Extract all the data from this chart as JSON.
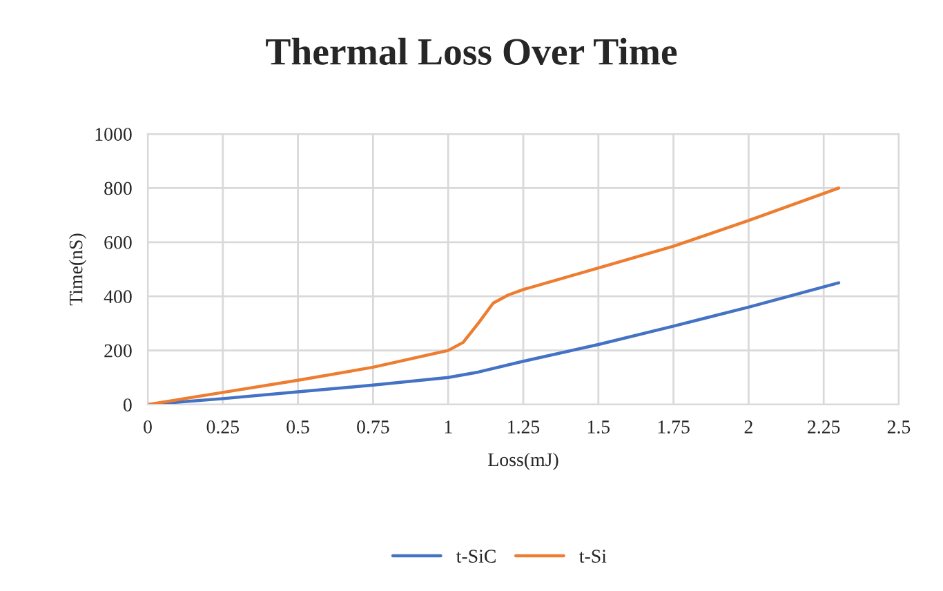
{
  "chart_data": {
    "type": "line",
    "title": "Thermal Loss Over Time",
    "xlabel": "Loss(mJ)",
    "ylabel": "Time(nS)",
    "series": [
      {
        "name": "t-SiC",
        "color": "#4472c4",
        "x": [
          0,
          0.25,
          0.5,
          0.75,
          1,
          1.1,
          1.25,
          1.5,
          1.75,
          2,
          2.3
        ],
        "values": [
          0,
          22,
          47,
          72,
          100,
          120,
          160,
          222,
          290,
          360,
          450
        ]
      },
      {
        "name": "t-Si",
        "color": "#ed7d31",
        "x": [
          0,
          0.25,
          0.5,
          0.75,
          1,
          1.05,
          1.1,
          1.15,
          1.2,
          1.25,
          1.5,
          1.75,
          2,
          2.3
        ],
        "values": [
          0,
          45,
          90,
          138,
          200,
          230,
          300,
          375,
          405,
          425,
          505,
          585,
          680,
          800
        ]
      }
    ],
    "xlim": [
      0,
      2.5
    ],
    "xticks": [
      0,
      0.25,
      0.5,
      0.75,
      1,
      1.25,
      1.5,
      1.75,
      2,
      2.25,
      2.5
    ],
    "ylim": [
      0,
      1000
    ],
    "yticks": [
      0,
      200,
      400,
      600,
      800,
      1000
    ],
    "grid": true,
    "legend": "bottom",
    "marker": "none",
    "line_style": "solid"
  }
}
